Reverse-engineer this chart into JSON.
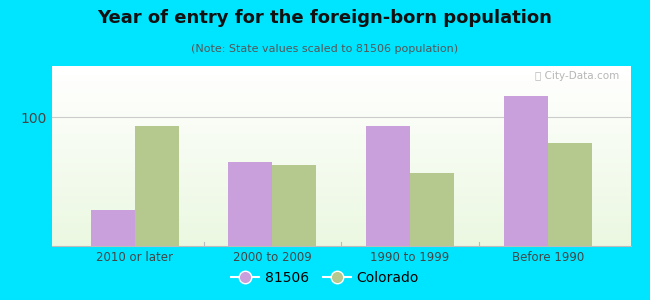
{
  "title": "Year of entry for the foreign-born population",
  "subtitle": "(Note: State values scaled to 81506 population)",
  "categories": [
    "2010 or later",
    "2000 to 2009",
    "1990 to 1999",
    "Before 1990"
  ],
  "values_81506": [
    28,
    65,
    93,
    117
  ],
  "values_colorado": [
    93,
    63,
    57,
    80
  ],
  "color_81506": "#c9a0dc",
  "color_colorado": "#b5c98e",
  "background_outer": "#00e5ff",
  "ylim": [
    0,
    140
  ],
  "yticks": [
    0,
    100
  ],
  "legend_label_1": "81506",
  "legend_label_2": "Colorado",
  "bar_width": 0.32,
  "figsize": [
    6.5,
    3.0
  ],
  "dpi": 100
}
